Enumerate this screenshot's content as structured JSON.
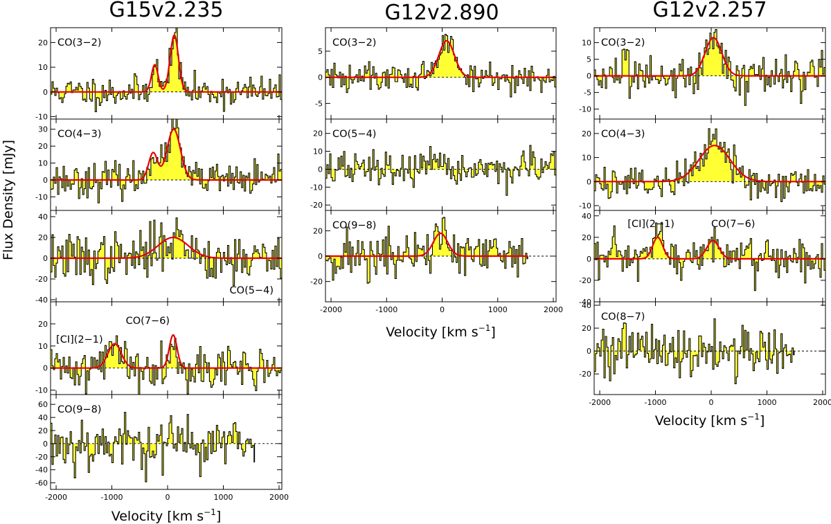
{
  "figure": {
    "ylabel": "Flux Density [mJy]"
  },
  "chart_data": [
    {
      "title": "G15v2.235",
      "type": "line",
      "xlabel": "Velocity [km s",
      "xlabel_sup": "−1",
      "xlabel_end": "]",
      "xlim": [
        -2100,
        2050
      ],
      "xticks": [
        -2000,
        -1000,
        0,
        1000,
        2000
      ],
      "panels": [
        {
          "labels": [
            "CO(3−2)"
          ],
          "ylim": [
            -11,
            26
          ],
          "yticks": [
            -10,
            0,
            10,
            20
          ],
          "vmax": 2050,
          "noise": 3.2,
          "seed": 11,
          "zero_style": "dotted",
          "fit": [
            {
              "amp": 11,
              "center": -230,
              "sigma": 60
            },
            {
              "amp": 23,
              "center": 120,
              "sigma": 75
            }
          ]
        },
        {
          "labels": [
            "CO(4−3)"
          ],
          "ylim": [
            -18,
            36
          ],
          "yticks": [
            -10,
            0,
            10,
            20,
            30
          ],
          "vmax": 2050,
          "noise": 5,
          "seed": 23,
          "zero_style": "dotted",
          "fit": [
            {
              "amp": 16,
              "center": -260,
              "sigma": 80
            },
            {
              "amp": 30,
              "center": 110,
              "sigma": 120
            }
          ]
        },
        {
          "labels": [
            "CO(5−4)"
          ],
          "label_pos": "bottom-right",
          "ylim": [
            -42,
            46
          ],
          "yticks": [
            -40,
            -20,
            0,
            20,
            40
          ],
          "vmax": 2050,
          "noise": 12,
          "seed": 37,
          "zero_style": "dotted",
          "fit": [
            {
              "amp": 20,
              "center": 100,
              "sigma": 270
            }
          ]
        },
        {
          "labels": [
            "[CI](2−1)",
            "CO(7−6)"
          ],
          "label_x": [
            -2000,
            -750
          ],
          "label_y_frac": [
            0.38,
            0.18
          ],
          "ylim": [
            -12,
            30
          ],
          "yticks": [
            -10,
            0,
            10,
            20
          ],
          "vmax": 2050,
          "noise": 5,
          "seed": 41,
          "zero_style": "dotted",
          "fit": [
            {
              "amp": 11,
              "center": -950,
              "sigma": 120
            },
            {
              "amp": 15,
              "center": 100,
              "sigma": 70
            }
          ]
        },
        {
          "labels": [
            "CO(9−8)"
          ],
          "ylim": [
            -70,
            75
          ],
          "yticks": [
            -60,
            -40,
            -20,
            0,
            20,
            40,
            60
          ],
          "vmax": 1560,
          "noise": 22,
          "seed": 53,
          "zero_style": "dashed",
          "fit": []
        }
      ]
    },
    {
      "title": "G12v2.890",
      "type": "line",
      "xlabel": "Velocity [km s",
      "xlabel_sup": "−1",
      "xlabel_end": "]",
      "xlim": [
        -2100,
        2050
      ],
      "xticks": [
        -2000,
        -1000,
        0,
        1000,
        2000
      ],
      "panels": [
        {
          "labels": [
            "CO(3−2)"
          ],
          "ylim": [
            -8,
            9.5
          ],
          "yticks": [
            -5,
            0,
            5
          ],
          "vmax": 2050,
          "noise": 1.6,
          "seed": 61,
          "zero_style": "dotted",
          "fit": [
            {
              "amp": 7,
              "center": 80,
              "sigma": 140
            }
          ]
        },
        {
          "labels": [
            "CO(5−4)"
          ],
          "ylim": [
            -23,
            28
          ],
          "yticks": [
            -20,
            -10,
            0,
            10,
            20
          ],
          "vmax": 2050,
          "noise": 5,
          "seed": 67,
          "zero_style": "dotted",
          "fit": []
        },
        {
          "labels": [
            "CO(9−8)"
          ],
          "ylim": [
            -36,
            36
          ],
          "yticks": [
            -20,
            0,
            20
          ],
          "vmax": 1540,
          "noise": 10,
          "seed": 71,
          "zero_style": "dotted",
          "fit": [
            {
              "amp": 18,
              "center": -30,
              "sigma": 130
            }
          ]
        }
      ]
    },
    {
      "title": "G12v2.257",
      "type": "line",
      "xlabel": "Velocity [km s",
      "xlabel_sup": "−1",
      "xlabel_end": "]",
      "xlim": [
        -2100,
        2050
      ],
      "xticks": [
        -2000,
        -1000,
        0,
        1000,
        2000
      ],
      "panels": [
        {
          "labels": [
            "CO(3−2)"
          ],
          "ylim": [
            -13,
            14.5
          ],
          "yticks": [
            -10,
            -5,
            0,
            5,
            10
          ],
          "vmax": 2050,
          "noise": 3.2,
          "seed": 83,
          "zero_style": "dotted",
          "fit": [
            {
              "amp": 11.5,
              "center": 40,
              "sigma": 150
            }
          ]
        },
        {
          "labels": [
            "CO(4−3)"
          ],
          "ylim": [
            -12,
            26
          ],
          "yticks": [
            -10,
            0,
            10,
            20
          ],
          "vmax": 2050,
          "noise": 4,
          "seed": 89,
          "zero_style": "dotted",
          "fit": [
            {
              "amp": 15,
              "center": 60,
              "sigma": 280
            }
          ]
        },
        {
          "labels": [
            "[CI](2−1)",
            "CO(7−6)"
          ],
          "label_x": [
            -1500,
            0
          ],
          "label_y_frac": [
            0.12,
            0.12
          ],
          "ylim": [
            -40,
            45
          ],
          "yticks": [
            -40,
            -20,
            0,
            20,
            40
          ],
          "vmax": 2050,
          "noise": 10,
          "seed": 97,
          "zero_style": "dotted",
          "fit": [
            {
              "amp": 20,
              "center": -960,
              "sigma": 90
            },
            {
              "amp": 17,
              "center": 30,
              "sigma": 110
            }
          ]
        },
        {
          "labels": [
            "CO(8−7)"
          ],
          "ylim": [
            -38,
            43
          ],
          "yticks": [
            -20,
            0,
            20,
            40
          ],
          "vmax": 1490,
          "noise": 12,
          "seed": 101,
          "zero_style": "dashed",
          "fit": []
        }
      ]
    }
  ]
}
